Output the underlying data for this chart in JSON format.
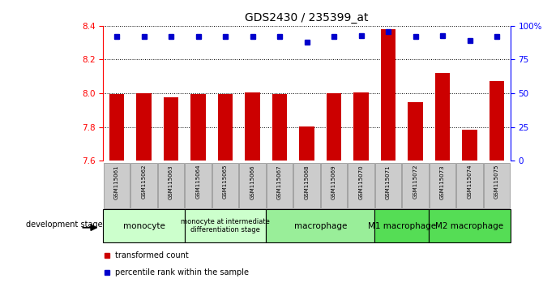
{
  "title": "GDS2430 / 235399_at",
  "samples": [
    "GSM115061",
    "GSM115062",
    "GSM115063",
    "GSM115064",
    "GSM115065",
    "GSM115066",
    "GSM115067",
    "GSM115068",
    "GSM115069",
    "GSM115070",
    "GSM115071",
    "GSM115072",
    "GSM115073",
    "GSM115074",
    "GSM115075"
  ],
  "bar_values": [
    7.995,
    8.0,
    7.975,
    7.995,
    7.995,
    8.005,
    7.995,
    7.805,
    8.0,
    8.005,
    8.38,
    7.945,
    8.12,
    7.785,
    8.07
  ],
  "percentile_values": [
    92,
    92,
    92,
    92,
    92,
    92,
    92,
    88,
    92,
    93,
    96,
    92,
    93,
    89,
    92
  ],
  "ylim_left": [
    7.6,
    8.4
  ],
  "ylim_right": [
    0,
    100
  ],
  "yticks_left": [
    7.6,
    7.8,
    8.0,
    8.2,
    8.4
  ],
  "yticks_right": [
    0,
    25,
    50,
    75,
    100
  ],
  "yticklabels_right": [
    "0",
    "25",
    "50",
    "75",
    "100%"
  ],
  "bar_color": "#cc0000",
  "percentile_color": "#0000cc",
  "bar_bottom": 7.6,
  "groups": [
    {
      "label": "monocyte",
      "start": 0,
      "end": 3,
      "color": "#ccffcc"
    },
    {
      "label": "monocyte at intermediate\ndifferentiation stage",
      "start": 3,
      "end": 6,
      "color": "#ccffcc"
    },
    {
      "label": "macrophage",
      "start": 6,
      "end": 10,
      "color": "#99ee99"
    },
    {
      "label": "M1 macrophage",
      "start": 10,
      "end": 12,
      "color": "#55dd55"
    },
    {
      "label": "M2 macrophage",
      "start": 12,
      "end": 15,
      "color": "#55dd55"
    }
  ],
  "legend_bar_label": "transformed count",
  "legend_pct_label": "percentile rank within the sample",
  "dev_stage_label": "development stage"
}
